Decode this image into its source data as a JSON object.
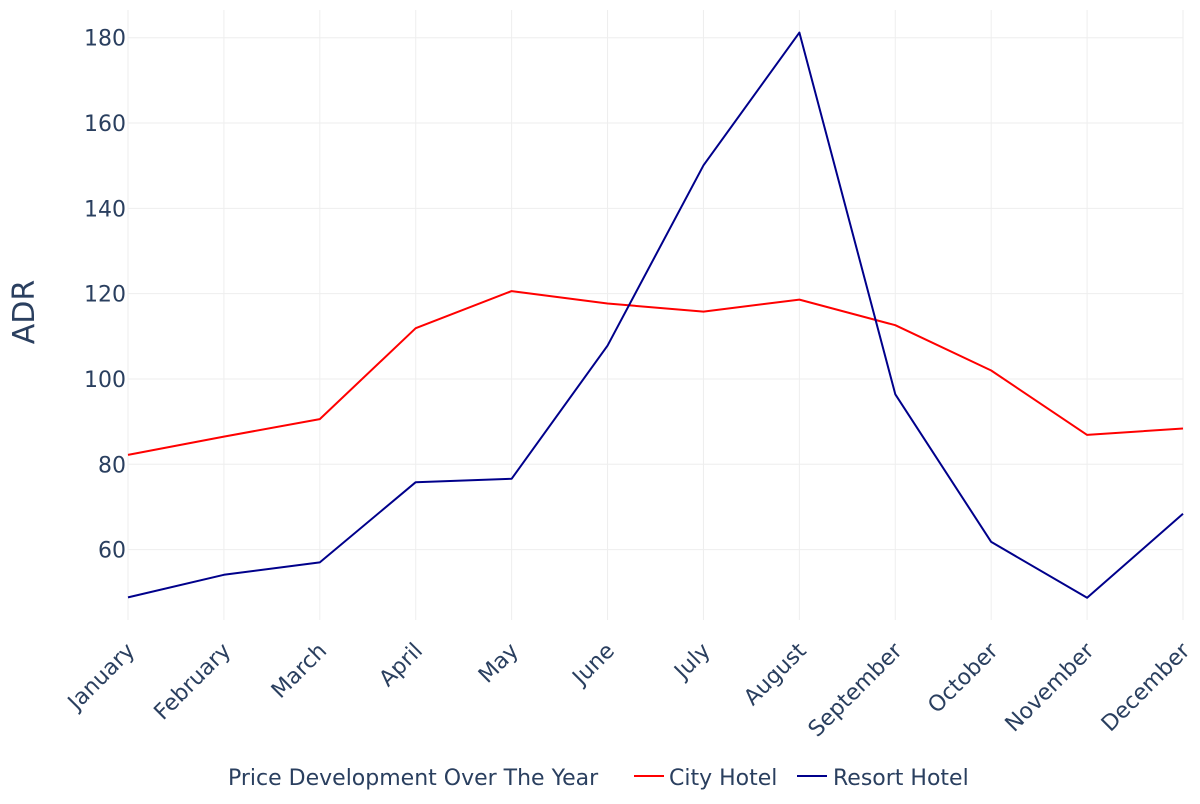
{
  "chart_data": {
    "type": "line",
    "title": "",
    "xlabel": "",
    "ylabel": "ADR",
    "categories": [
      "January",
      "February",
      "March",
      "April",
      "May",
      "June",
      "July",
      "August",
      "September",
      "October",
      "November",
      "December"
    ],
    "series": [
      {
        "name": "City Hotel",
        "color": "#ff0000",
        "values": [
          82.2,
          86.5,
          90.6,
          111.9,
          120.6,
          117.7,
          115.8,
          118.6,
          112.6,
          102.0,
          86.9,
          88.4
        ]
      },
      {
        "name": "Resort Hotel",
        "color": "#00008b",
        "values": [
          48.8,
          54.1,
          57.0,
          75.8,
          76.6,
          107.8,
          150.1,
          181.2,
          96.4,
          61.8,
          48.7,
          68.4
        ]
      }
    ],
    "y_ticks": [
      60,
      80,
      100,
      120,
      140,
      160,
      180
    ],
    "ylim": [
      43.5,
      186.5
    ],
    "grid": true,
    "legend": {
      "title": "Price Development Over The Year",
      "placement": "bottom"
    }
  }
}
